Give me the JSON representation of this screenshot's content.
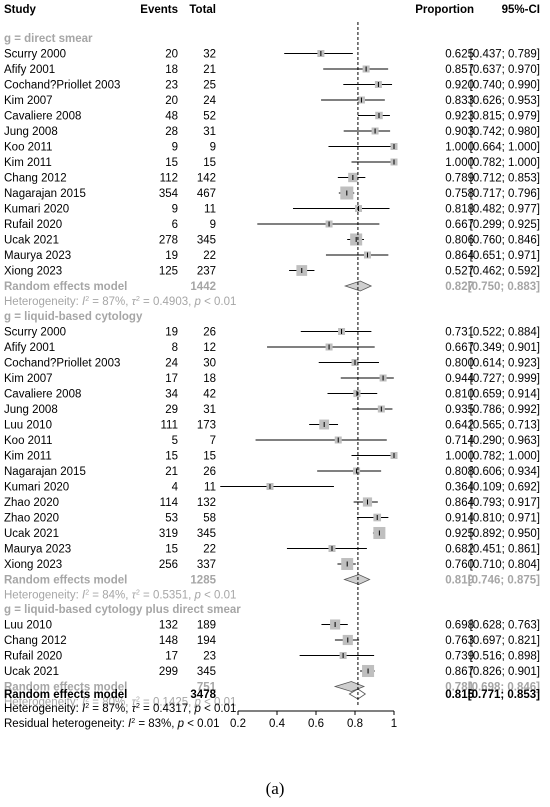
{
  "colors": {
    "grey_text": "#a6a6a6",
    "box_fill": "#bfbfbf",
    "line": "#000000",
    "diamond_fill": "#cfcfcf"
  },
  "headers": {
    "study": "Study",
    "events": "Events",
    "total": "Total",
    "proportion": "Proportion",
    "ci": "95%-CI"
  },
  "panel_label": "(a)",
  "chart_data": {
    "type": "forest",
    "xlim": [
      0.2,
      1.0
    ],
    "xticks": [
      "0.2",
      "0.4",
      "0.6",
      "0.8",
      "1"
    ],
    "reference_line": 0.815,
    "groups": [
      {
        "title": "g = direct smear",
        "studies": [
          {
            "study": "Scurry 2000",
            "events": "20",
            "total": "32",
            "est": 0.625,
            "lo": 0.437,
            "hi": 0.789,
            "prop": "0.625",
            "ci": "[0.437; 0.789]"
          },
          {
            "study": "Afify 2001",
            "events": "18",
            "total": "21",
            "est": 0.857,
            "lo": 0.637,
            "hi": 0.97,
            "prop": "0.857",
            "ci": "[0.637; 0.970]"
          },
          {
            "study": "Cochand?Priollet 2003",
            "events": "23",
            "total": "25",
            "est": 0.92,
            "lo": 0.74,
            "hi": 0.99,
            "prop": "0.920",
            "ci": "[0.740; 0.990]"
          },
          {
            "study": "Kim 2007",
            "events": "20",
            "total": "24",
            "est": 0.833,
            "lo": 0.626,
            "hi": 0.953,
            "prop": "0.833",
            "ci": "[0.626; 0.953]"
          },
          {
            "study": "Cavaliere 2008",
            "events": "48",
            "total": "52",
            "est": 0.923,
            "lo": 0.815,
            "hi": 0.979,
            "prop": "0.923",
            "ci": "[0.815; 0.979]"
          },
          {
            "study": "Jung 2008",
            "events": "28",
            "total": "31",
            "est": 0.903,
            "lo": 0.742,
            "hi": 0.98,
            "prop": "0.903",
            "ci": "[0.742; 0.980]"
          },
          {
            "study": "Koo 2011",
            "events": "9",
            "total": "9",
            "est": 1.0,
            "lo": 0.664,
            "hi": 1.0,
            "prop": "1.000",
            "ci": "[0.664; 1.000]"
          },
          {
            "study": "Kim 2011",
            "events": "15",
            "total": "15",
            "est": 1.0,
            "lo": 0.782,
            "hi": 1.0,
            "prop": "1.000",
            "ci": "[0.782; 1.000]"
          },
          {
            "study": "Chang 2012",
            "events": "112",
            "total": "142",
            "est": 0.789,
            "lo": 0.712,
            "hi": 0.853,
            "prop": "0.789",
            "ci": "[0.712; 0.853]"
          },
          {
            "study": "Nagarajan 2015",
            "events": "354",
            "total": "467",
            "est": 0.758,
            "lo": 0.717,
            "hi": 0.796,
            "prop": "0.758",
            "ci": "[0.717; 0.796]"
          },
          {
            "study": "Kumari 2020",
            "events": "9",
            "total": "11",
            "est": 0.818,
            "lo": 0.482,
            "hi": 0.977,
            "prop": "0.818",
            "ci": "[0.482; 0.977]"
          },
          {
            "study": "Rufail 2020",
            "events": "6",
            "total": "9",
            "est": 0.667,
            "lo": 0.299,
            "hi": 0.925,
            "prop": "0.667",
            "ci": "[0.299; 0.925]"
          },
          {
            "study": "Ucak 2021",
            "events": "278",
            "total": "345",
            "est": 0.806,
            "lo": 0.76,
            "hi": 0.846,
            "prop": "0.806",
            "ci": "[0.760; 0.846]"
          },
          {
            "study": "Maurya 2023",
            "events": "19",
            "total": "22",
            "est": 0.864,
            "lo": 0.651,
            "hi": 0.971,
            "prop": "0.864",
            "ci": "[0.651; 0.971]"
          },
          {
            "study": "Xiong 2023",
            "events": "125",
            "total": "237",
            "est": 0.527,
            "lo": 0.462,
            "hi": 0.592,
            "prop": "0.527",
            "ci": "[0.462; 0.592]"
          }
        ],
        "summary": {
          "label": "Random effects model",
          "total": "1442",
          "est": 0.827,
          "lo": 0.75,
          "hi": 0.883,
          "prop": "0.827",
          "ci": "[0.750; 0.883]"
        },
        "heterogeneity": {
          "prefix": "Heterogeneity: ",
          "i2": "I",
          "eq1": " = 87%, ",
          "tau": "τ",
          "eq2": " = 0.4903, ",
          "p": "p",
          "rest": " < 0.01"
        }
      },
      {
        "title": "g = liquid-based cytology",
        "studies": [
          {
            "study": "Scurry 2000",
            "events": "19",
            "total": "26",
            "est": 0.731,
            "lo": 0.522,
            "hi": 0.884,
            "prop": "0.731",
            "ci": "[0.522; 0.884]"
          },
          {
            "study": "Afify 2001",
            "events": "8",
            "total": "12",
            "est": 0.667,
            "lo": 0.349,
            "hi": 0.901,
            "prop": "0.667",
            "ci": "[0.349; 0.901]"
          },
          {
            "study": "Cochand?Priollet 2003",
            "events": "24",
            "total": "30",
            "est": 0.8,
            "lo": 0.614,
            "hi": 0.923,
            "prop": "0.800",
            "ci": "[0.614; 0.923]"
          },
          {
            "study": "Kim 2007",
            "events": "17",
            "total": "18",
            "est": 0.944,
            "lo": 0.727,
            "hi": 0.999,
            "prop": "0.944",
            "ci": "[0.727; 0.999]"
          },
          {
            "study": "Cavaliere 2008",
            "events": "34",
            "total": "42",
            "est": 0.81,
            "lo": 0.659,
            "hi": 0.914,
            "prop": "0.810",
            "ci": "[0.659; 0.914]"
          },
          {
            "study": "Jung 2008",
            "events": "29",
            "total": "31",
            "est": 0.935,
            "lo": 0.786,
            "hi": 0.992,
            "prop": "0.935",
            "ci": "[0.786; 0.992]"
          },
          {
            "study": "Luu 2010",
            "events": "111",
            "total": "173",
            "est": 0.642,
            "lo": 0.565,
            "hi": 0.713,
            "prop": "0.642",
            "ci": "[0.565; 0.713]"
          },
          {
            "study": "Koo 2011",
            "events": "5",
            "total": "7",
            "est": 0.714,
            "lo": 0.29,
            "hi": 0.963,
            "prop": "0.714",
            "ci": "[0.290; 0.963]"
          },
          {
            "study": "Kim 2011",
            "events": "15",
            "total": "15",
            "est": 1.0,
            "lo": 0.782,
            "hi": 1.0,
            "prop": "1.000",
            "ci": "[0.782; 1.000]"
          },
          {
            "study": "Nagarajan 2015",
            "events": "21",
            "total": "26",
            "est": 0.808,
            "lo": 0.606,
            "hi": 0.934,
            "prop": "0.808",
            "ci": "[0.606; 0.934]"
          },
          {
            "study": "Kumari 2020",
            "events": "4",
            "total": "11",
            "est": 0.364,
            "lo": 0.109,
            "hi": 0.692,
            "prop": "0.364",
            "ci": "[0.109; 0.692]"
          },
          {
            "study": "Zhao 2020",
            "events": "114",
            "total": "132",
            "est": 0.864,
            "lo": 0.793,
            "hi": 0.917,
            "prop": "0.864",
            "ci": "[0.793; 0.917]"
          },
          {
            "study": "Zhao 2020",
            "events": "53",
            "total": "58",
            "est": 0.914,
            "lo": 0.81,
            "hi": 0.971,
            "prop": "0.914",
            "ci": "[0.810; 0.971]"
          },
          {
            "study": "Ucak 2021",
            "events": "319",
            "total": "345",
            "est": 0.925,
            "lo": 0.892,
            "hi": 0.95,
            "prop": "0.925",
            "ci": "[0.892; 0.950]"
          },
          {
            "study": "Maurya 2023",
            "events": "15",
            "total": "22",
            "est": 0.682,
            "lo": 0.451,
            "hi": 0.861,
            "prop": "0.682",
            "ci": "[0.451; 0.861]"
          },
          {
            "study": "Xiong 2023",
            "events": "256",
            "total": "337",
            "est": 0.76,
            "lo": 0.71,
            "hi": 0.804,
            "prop": "0.760",
            "ci": "[0.710; 0.804]"
          }
        ],
        "summary": {
          "label": "Random effects model",
          "total": "1285",
          "est": 0.819,
          "lo": 0.746,
          "hi": 0.875,
          "prop": "0.819",
          "ci": "[0.746; 0.875]"
        },
        "heterogeneity": {
          "prefix": "Heterogeneity: ",
          "i2": "I",
          "eq1": " = 84%, ",
          "tau": "τ",
          "eq2": " = 0.5351, ",
          "p": "p",
          "rest": " < 0.01"
        }
      },
      {
        "title": "g = liquid-based cytology plus direct smear",
        "studies": [
          {
            "study": "Luu 2010",
            "events": "132",
            "total": "189",
            "est": 0.698,
            "lo": 0.628,
            "hi": 0.763,
            "prop": "0.698",
            "ci": "[0.628; 0.763]"
          },
          {
            "study": "Chang 2012",
            "events": "148",
            "total": "194",
            "est": 0.763,
            "lo": 0.697,
            "hi": 0.821,
            "prop": "0.763",
            "ci": "[0.697; 0.821]"
          },
          {
            "study": "Rufail 2020",
            "events": "17",
            "total": "23",
            "est": 0.739,
            "lo": 0.516,
            "hi": 0.898,
            "prop": "0.739",
            "ci": "[0.516; 0.898]"
          },
          {
            "study": "Ucak 2021",
            "events": "299",
            "total": "345",
            "est": 0.867,
            "lo": 0.826,
            "hi": 0.901,
            "prop": "0.867",
            "ci": "[0.826; 0.901]"
          }
        ],
        "summary": {
          "label": "Random effects model",
          "total": "751",
          "est": 0.781,
          "lo": 0.698,
          "hi": 0.846,
          "prop": "0.781",
          "ci": "[0.698; 0.846]"
        },
        "heterogeneity": {
          "prefix": "Heterogeneity: ",
          "i2": "I",
          "eq1": " = 80%, ",
          "tau": "τ",
          "eq2": " = 0.1425, ",
          "p": "p",
          "rest": " < 0.01"
        }
      }
    ],
    "overall": {
      "label": "Random effects model",
      "total": "3478",
      "est": 0.815,
      "lo": 0.771,
      "hi": 0.853,
      "prop": "0.815",
      "ci": "[0.771; 0.853]",
      "heterogeneity": {
        "prefix": "Heterogeneity: ",
        "i2": "I",
        "eq1": " = 87%, ",
        "tau": "τ",
        "eq2": " = 0.4317, ",
        "p": "p",
        "rest": " < 0.01"
      },
      "residual": {
        "prefix": "Residual heterogeneity: ",
        "i2": "I",
        "eq1": " = 83%, ",
        "p": "p",
        "rest": " < 0.01"
      }
    }
  }
}
